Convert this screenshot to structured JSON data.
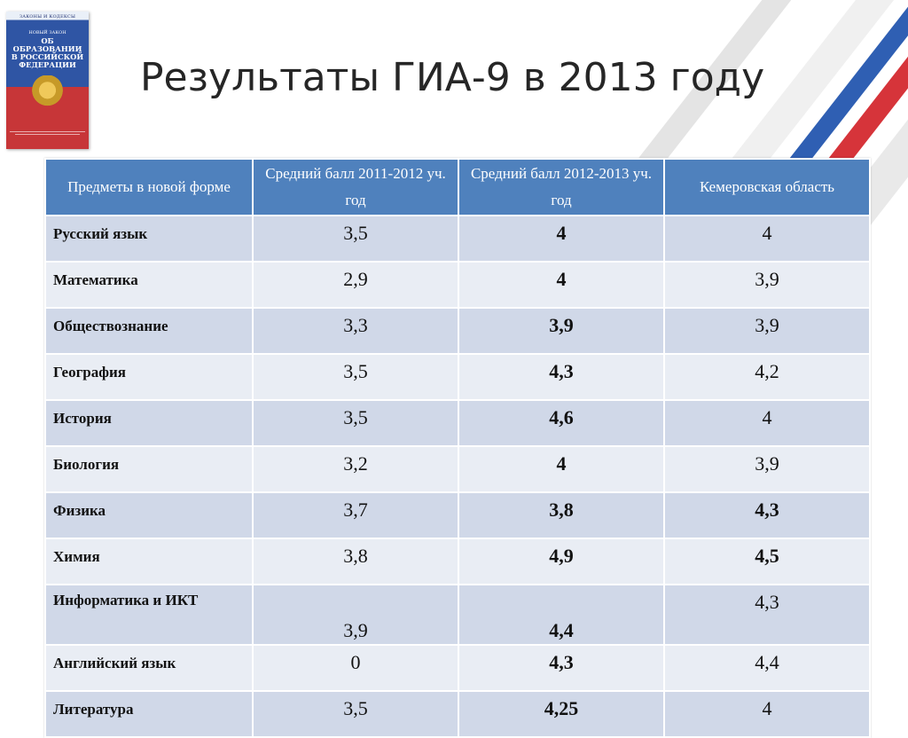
{
  "slide": {
    "title": "Результаты ГИА-9 в 2013 году"
  },
  "book": {
    "small_head": "ЗАКОНЫ И КОДЕКСЫ",
    "sub": "НОВЫЙ ЗАКОН",
    "title_line1": "ОБ ОБРАЗОВАНИИ",
    "title_line2": "В РОССИЙСКОЙ",
    "title_line3": "ФЕДЕРАЦИИ"
  },
  "table": {
    "headers": [
      "Предметы в новой форме",
      "Средний балл 2011-2012 уч. год",
      "Средний балл 2012-2013 уч. год",
      "Кемеровская область"
    ],
    "rows": [
      {
        "subject": "Русский язык",
        "y2012": "3,5",
        "y2013": "4",
        "kemerovo": "4"
      },
      {
        "subject": "Математика",
        "y2012": "2,9",
        "y2013": "4",
        "kemerovo": "3,9"
      },
      {
        "subject": "Обществознание",
        "y2012": "3,3",
        "y2013": "3,9",
        "kemerovo": "3,9"
      },
      {
        "subject": "География",
        "y2012": "3,5",
        "y2013": "4,3",
        "kemerovo": "4,2"
      },
      {
        "subject": "История",
        "y2012": "3,5",
        "y2013": "4,6",
        "kemerovo": "4"
      },
      {
        "subject": "Биология",
        "y2012": "3,2",
        "y2013": "4",
        "kemerovo": "3,9"
      },
      {
        "subject": "Физика",
        "y2012": "3,7",
        "y2013": "3,8",
        "kemerovo": "4,3"
      },
      {
        "subject": "Химия",
        "y2012": "3,8",
        "y2013": "4,9",
        "kemerovo": "4,5"
      },
      {
        "subject": "Информатика и ИКТ",
        "y2012": "3,9",
        "y2013": "4,4",
        "kemerovo": "4,3"
      },
      {
        "subject": "Английский язык",
        "y2012": "0",
        "y2013": "4,3",
        "kemerovo": "4,4"
      },
      {
        "subject": "Литература",
        "y2012": "3,5",
        "y2013": "4,25",
        "kemerovo": "4"
      }
    ]
  },
  "colors": {
    "header_bg": "#4f81bd",
    "row_odd": "#d0d8e8",
    "row_even": "#e9edf4"
  }
}
